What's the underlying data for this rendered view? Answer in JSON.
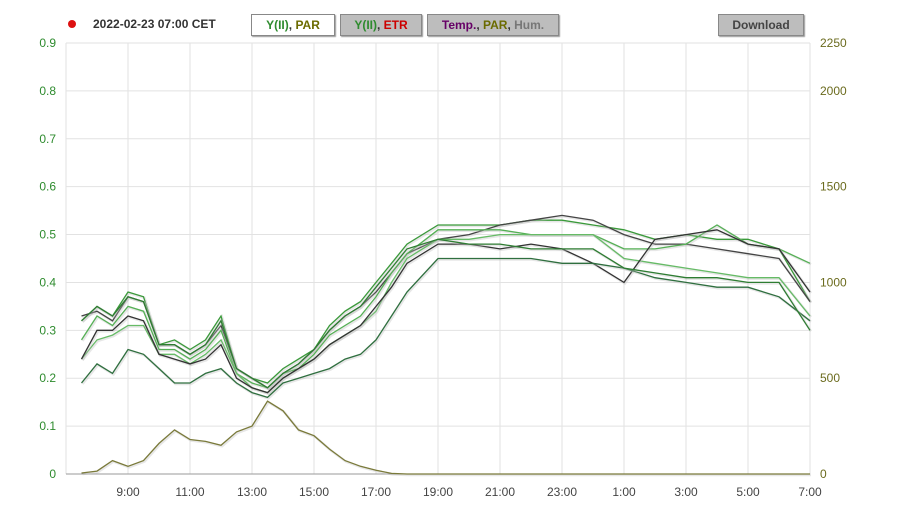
{
  "header": {
    "status_color": "#dd1111",
    "date": "2022-02-23 07:00 CET",
    "tabs": [
      {
        "parts": [
          {
            "text": "Y(II)",
            "color": "#2e8b2e"
          },
          {
            "text": ", ",
            "color": "#333"
          },
          {
            "text": "PAR",
            "color": "#6b6b00"
          }
        ],
        "active": true
      },
      {
        "parts": [
          {
            "text": "Y(II)",
            "color": "#2e8b2e"
          },
          {
            "text": ", ",
            "color": "#333"
          },
          {
            "text": "ETR",
            "color": "#cc0000"
          }
        ],
        "active": false
      },
      {
        "parts": [
          {
            "text": "Temp.",
            "color": "#660066"
          },
          {
            "text": ", ",
            "color": "#333"
          },
          {
            "text": "PAR",
            "color": "#6b6b00"
          },
          {
            "text": ", ",
            "color": "#333"
          },
          {
            "text": "Hum.",
            "color": "#777777"
          }
        ],
        "active": false
      }
    ],
    "download": "Download"
  },
  "chart_data": {
    "type": "line",
    "grid": true,
    "x": [
      "7:30",
      "8:00",
      "8:30",
      "9:00",
      "9:30",
      "10:00",
      "10:30",
      "11:00",
      "11:30",
      "12:00",
      "12:30",
      "13:00",
      "13:30",
      "14:00",
      "14:30",
      "15:00",
      "15:30",
      "16:00",
      "16:30",
      "17:00",
      "17:30",
      "18:00",
      "19:00",
      "20:00",
      "21:00",
      "22:00",
      "23:00",
      "0:00",
      "1:00",
      "2:00",
      "3:00",
      "4:00",
      "5:00",
      "6:00",
      "7:00"
    ],
    "xticks": [
      "9:00",
      "11:00",
      "13:00",
      "15:00",
      "17:00",
      "19:00",
      "21:00",
      "23:00",
      "1:00",
      "3:00",
      "5:00",
      "7:00"
    ],
    "xrange": [
      "7:00",
      "7:00"
    ],
    "y_left": {
      "range": [
        0,
        0.9
      ],
      "ticks": [
        "0",
        "0.1",
        "0.2",
        "0.3",
        "0.4",
        "0.5",
        "0.6",
        "0.7",
        "0.8",
        "0.9"
      ],
      "color": "#2e8b2e"
    },
    "y_right": {
      "range": [
        0,
        2250
      ],
      "ticks": [
        "0",
        "500",
        "1000",
        "1500",
        "2000",
        "2250"
      ],
      "tick_values": [
        0,
        500,
        1000,
        1500,
        2000,
        2250
      ],
      "color": "#6b6b1e"
    },
    "series": [
      {
        "axis": "left",
        "color": "#3a9a3a",
        "values": [
          0.32,
          0.35,
          0.33,
          0.38,
          0.37,
          0.27,
          0.28,
          0.26,
          0.28,
          0.33,
          0.22,
          0.2,
          0.19,
          0.22,
          0.24,
          0.26,
          0.31,
          0.34,
          0.36,
          0.4,
          0.44,
          0.48,
          0.52,
          0.52,
          0.52,
          0.53,
          0.53,
          0.52,
          0.51,
          0.49,
          0.5,
          0.49,
          0.49,
          0.47,
          0.36
        ]
      },
      {
        "axis": "left",
        "color": "#444444",
        "values": [
          0.33,
          0.34,
          0.32,
          0.37,
          0.36,
          0.27,
          0.27,
          0.25,
          0.27,
          0.31,
          0.22,
          0.2,
          0.18,
          0.21,
          0.23,
          0.26,
          0.3,
          0.33,
          0.35,
          0.38,
          0.42,
          0.46,
          0.49,
          0.5,
          0.52,
          0.53,
          0.54,
          0.53,
          0.5,
          0.48,
          0.48,
          0.47,
          0.46,
          0.45,
          0.36
        ]
      },
      {
        "axis": "left",
        "color": "#55b055",
        "values": [
          0.28,
          0.33,
          0.31,
          0.35,
          0.34,
          0.26,
          0.26,
          0.24,
          0.26,
          0.3,
          0.21,
          0.19,
          0.18,
          0.21,
          0.22,
          0.25,
          0.29,
          0.31,
          0.33,
          0.37,
          0.42,
          0.46,
          0.51,
          0.51,
          0.51,
          0.5,
          0.5,
          0.5,
          0.47,
          0.47,
          0.48,
          0.52,
          0.48,
          0.47,
          0.44
        ]
      },
      {
        "axis": "left",
        "color": "#66bb66",
        "values": [
          0.24,
          0.28,
          0.29,
          0.31,
          0.31,
          0.25,
          0.25,
          0.23,
          0.25,
          0.28,
          0.21,
          0.18,
          0.17,
          0.2,
          0.22,
          0.24,
          0.27,
          0.29,
          0.31,
          0.34,
          0.4,
          0.45,
          0.49,
          0.49,
          0.5,
          0.5,
          0.5,
          0.5,
          0.45,
          0.44,
          0.43,
          0.42,
          0.41,
          0.41,
          0.33
        ]
      },
      {
        "axis": "left",
        "color": "#333333",
        "values": [
          0.24,
          0.3,
          0.3,
          0.33,
          0.32,
          0.25,
          0.24,
          0.23,
          0.24,
          0.27,
          0.2,
          0.18,
          0.17,
          0.2,
          0.22,
          0.24,
          0.27,
          0.29,
          0.31,
          0.35,
          0.39,
          0.44,
          0.48,
          0.48,
          0.47,
          0.48,
          0.47,
          0.44,
          0.4,
          0.49,
          0.5,
          0.51,
          0.48,
          0.47,
          0.38
        ]
      },
      {
        "axis": "left",
        "color": "#2f6f3f",
        "values": [
          0.19,
          0.23,
          0.21,
          0.26,
          0.25,
          0.22,
          0.19,
          0.19,
          0.21,
          0.22,
          0.19,
          0.17,
          0.16,
          0.19,
          0.2,
          0.21,
          0.22,
          0.24,
          0.25,
          0.28,
          0.33,
          0.38,
          0.45,
          0.45,
          0.45,
          0.45,
          0.44,
          0.44,
          0.43,
          0.41,
          0.4,
          0.39,
          0.39,
          0.37,
          0.32
        ]
      },
      {
        "axis": "left",
        "color": "#2e7d32",
        "values": [
          0.32,
          0.35,
          0.33,
          0.37,
          0.36,
          0.27,
          0.27,
          0.25,
          0.27,
          0.32,
          0.22,
          0.2,
          0.18,
          0.21,
          0.23,
          0.26,
          0.3,
          0.33,
          0.35,
          0.39,
          0.43,
          0.47,
          0.49,
          0.48,
          0.48,
          0.47,
          0.47,
          0.47,
          0.43,
          0.42,
          0.41,
          0.41,
          0.4,
          0.4,
          0.3
        ]
      },
      {
        "axis": "right",
        "name": "PAR",
        "color": "#7a7a3a",
        "values": [
          5,
          15,
          70,
          40,
          70,
          160,
          230,
          180,
          170,
          150,
          220,
          250,
          380,
          330,
          230,
          200,
          130,
          70,
          40,
          20,
          3,
          0,
          0,
          0,
          0,
          0,
          0,
          0,
          0,
          0,
          0,
          0,
          0,
          0,
          0
        ]
      }
    ]
  }
}
